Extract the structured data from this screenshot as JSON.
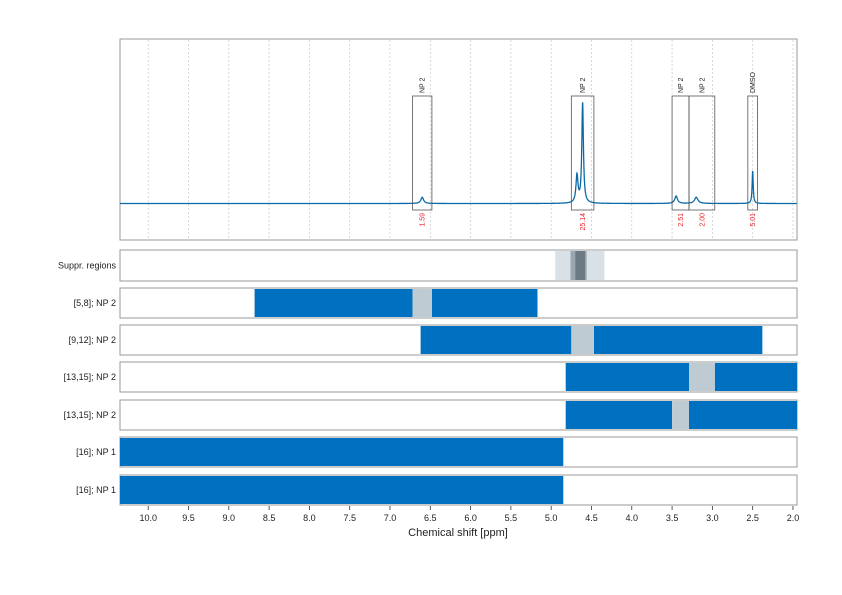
{
  "chart_data": {
    "type": "line",
    "xlabel": "Chemical shift [ppm]",
    "xlim": [
      10.35,
      1.95
    ],
    "x_ticks": [
      "10.0",
      "9.5",
      "9.0",
      "8.5",
      "8.0",
      "7.5",
      "7.0",
      "6.5",
      "6.0",
      "5.5",
      "5.0",
      "4.5",
      "4.0",
      "3.5",
      "3.0",
      "2.5",
      "2.0"
    ],
    "x_tick_values": [
      10.0,
      9.5,
      9.0,
      8.5,
      8.0,
      7.5,
      7.0,
      6.5,
      6.0,
      5.5,
      5.0,
      4.5,
      4.0,
      3.5,
      3.0,
      2.5,
      2.0
    ],
    "colors": {
      "spectrum": "#0a6aa8",
      "bar": "#0070c0",
      "suppressed": "#bfcbd3",
      "suppr_region_light": "#d9e1e7",
      "suppr_region_mid": "#9aa7b1",
      "suppr_region_dark": "#6b7a85",
      "integral_text": "#e8202a",
      "gridline": "#c8c8c8"
    },
    "spectrum": {
      "baseline": 0,
      "peaks": [
        {
          "center": 6.6,
          "height": 0.05,
          "width": 0.02
        },
        {
          "center": 4.61,
          "height": 0.8,
          "width": 0.012
        },
        {
          "center": 4.68,
          "height": 0.22,
          "width": 0.015
        },
        {
          "center": 3.45,
          "height": 0.06,
          "width": 0.02
        },
        {
          "center": 3.2,
          "height": 0.05,
          "width": 0.025
        },
        {
          "center": 2.5,
          "height": 0.26,
          "width": 0.008
        }
      ]
    },
    "integration_regions": [
      {
        "label": "NP 2",
        "start": 6.72,
        "end": 6.48,
        "value": "1.59"
      },
      {
        "label": "NP 2",
        "start": 4.75,
        "end": 4.47,
        "value": "25.14"
      },
      {
        "label": "NP 2",
        "start": 3.5,
        "end": 3.29,
        "value": "2.51"
      },
      {
        "label": "NP 2",
        "start": 3.29,
        "end": 2.97,
        "value": "2.00"
      },
      {
        "label": "DMSO",
        "start": 2.56,
        "end": 2.44,
        "value": "5.01"
      }
    ],
    "suppressed_regions": [
      {
        "start": 4.95,
        "end": 4.34,
        "level": "light"
      },
      {
        "start": 4.76,
        "end": 4.56,
        "level": "mid"
      },
      {
        "start": 4.7,
        "end": 4.58,
        "level": "dark"
      }
    ],
    "rows": [
      {
        "label": "[5,8]; NP 2",
        "bars": [
          {
            "start": 8.68,
            "end": 6.72
          },
          {
            "start": 6.48,
            "end": 5.17
          }
        ],
        "gaps": [
          {
            "start": 6.72,
            "end": 6.48
          }
        ]
      },
      {
        "label": "[9,12]; NP 2",
        "bars": [
          {
            "start": 6.62,
            "end": 4.75
          },
          {
            "start": 4.47,
            "end": 2.38
          }
        ],
        "gaps": [
          {
            "start": 4.75,
            "end": 4.47
          }
        ]
      },
      {
        "label": "[13,15]; NP 2",
        "bars": [
          {
            "start": 4.82,
            "end": 3.29
          },
          {
            "start": 2.97,
            "end": 1.95
          }
        ],
        "gaps": [
          {
            "start": 3.29,
            "end": 2.97
          }
        ]
      },
      {
        "label": "[13,15]; NP 2",
        "bars": [
          {
            "start": 4.82,
            "end": 3.5
          },
          {
            "start": 3.29,
            "end": 1.95
          }
        ],
        "gaps": [
          {
            "start": 3.5,
            "end": 3.29
          }
        ]
      },
      {
        "label": "[16]; NP 1",
        "bars": [
          {
            "start": 10.35,
            "end": 4.85
          }
        ],
        "gaps": []
      },
      {
        "label": "[16]; NP 1",
        "bars": [
          {
            "start": 10.35,
            "end": 4.85
          }
        ],
        "gaps": []
      }
    ],
    "suppr_label": "Suppr. regions"
  }
}
